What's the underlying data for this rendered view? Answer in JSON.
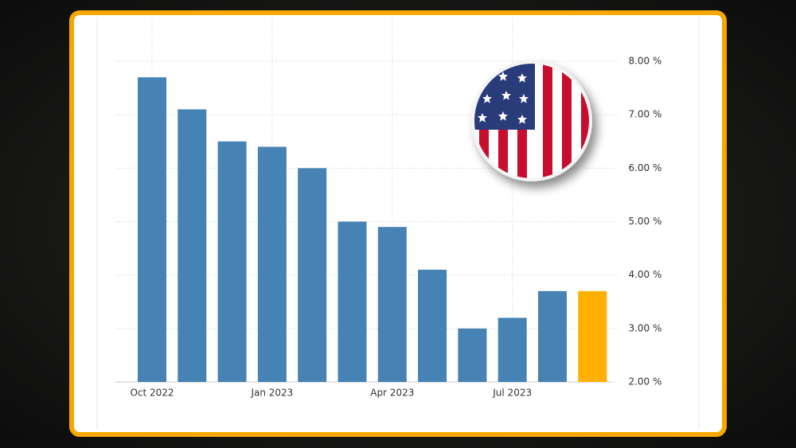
{
  "chart_data": {
    "type": "bar",
    "categories": [
      "Oct 2022",
      null,
      null,
      "Jan 2023",
      null,
      null,
      "Apr 2023",
      null,
      null,
      "Jul 2023",
      null,
      null
    ],
    "values": [
      7.7,
      7.1,
      6.5,
      6.4,
      6.0,
      5.0,
      4.9,
      4.1,
      3.0,
      3.2,
      3.7,
      3.7
    ],
    "colors": [
      "#4682b4",
      "#4682b4",
      "#4682b4",
      "#4682b4",
      "#4682b4",
      "#4682b4",
      "#4682b4",
      "#4682b4",
      "#4682b4",
      "#4682b4",
      "#4682b4",
      "#ffb000"
    ],
    "ylim": [
      2,
      8
    ],
    "yticks": [
      {
        "value": 2,
        "label": "2.00 %"
      },
      {
        "value": 3,
        "label": "3.00 %"
      },
      {
        "value": 4,
        "label": "4.00 %"
      },
      {
        "value": 5,
        "label": "5.00 %"
      },
      {
        "value": 6,
        "label": "6.00 %"
      },
      {
        "value": 7,
        "label": "7.00 %"
      },
      {
        "value": 8,
        "label": "8.00 %"
      }
    ],
    "grid": true
  }
}
